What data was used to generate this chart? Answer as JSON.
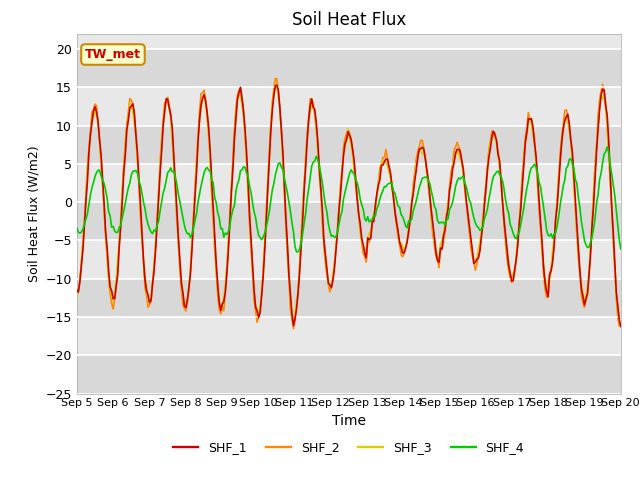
{
  "title": "Soil Heat Flux",
  "xlabel": "Time",
  "ylabel": "Soil Heat Flux (W/m2)",
  "ylim": [
    -25,
    22
  ],
  "yticks": [
    -25,
    -20,
    -15,
    -10,
    -5,
    0,
    5,
    10,
    15,
    20
  ],
  "bg_color": "#ffffff",
  "plot_bg": "#e8e8e8",
  "line_colors": {
    "SHF_1": "#cc0000",
    "SHF_2": "#ff8800",
    "SHF_3": "#ddcc00",
    "SHF_4": "#00cc00"
  },
  "legend_label": "TW_met",
  "legend_bg": "#ffffcc",
  "legend_border": "#cc8800",
  "legend_text_color": "#cc0000",
  "line_width": 1.2
}
